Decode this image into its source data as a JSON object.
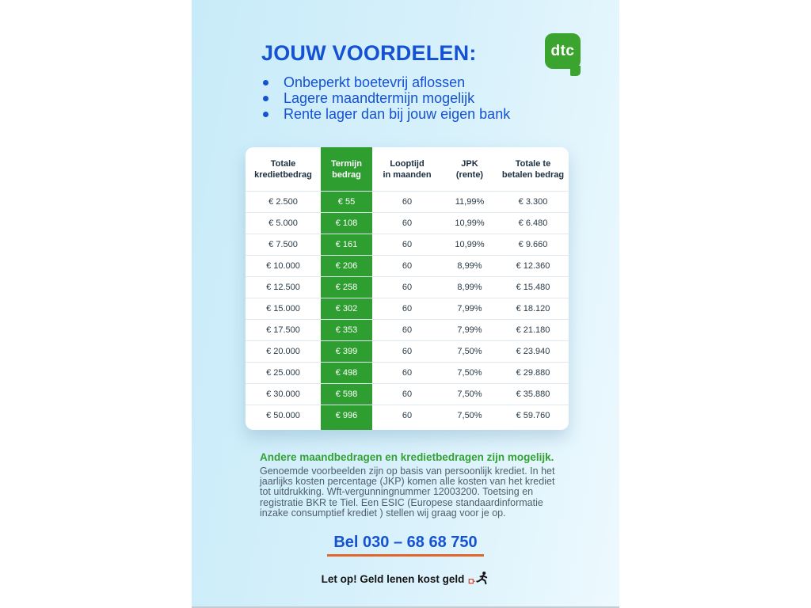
{
  "header": {
    "title": "JOUW VOORDELEN:",
    "logo_text": "dtc",
    "benefits": [
      "Onbeperkt boetevrij aflossen",
      "Lagere maandtermijn mogelijk",
      "Rente lager dan bij jouw eigen bank"
    ]
  },
  "table": {
    "columns": [
      {
        "label": "Totale kredietbedrag",
        "line1": "Totale",
        "line2": "kredietbedrag",
        "highlight": false
      },
      {
        "label": "Termijn bedrag",
        "line1": "Termijn",
        "line2": "bedrag",
        "highlight": true
      },
      {
        "label": "Looptijd in maanden",
        "line1": "Looptijd",
        "line2": "in maanden",
        "highlight": false
      },
      {
        "label": "JPK (rente)",
        "line1": "JPK",
        "line2": "(rente)",
        "highlight": false
      },
      {
        "label": "Totale te betalen bedrag",
        "line1": "Totale te",
        "line2": "betalen bedrag",
        "highlight": false
      }
    ],
    "rows": [
      [
        "€ 2.500",
        "€ 55",
        "60",
        "11,99%",
        "€ 3.300"
      ],
      [
        "€ 5.000",
        "€ 108",
        "60",
        "10,99%",
        "€ 6.480"
      ],
      [
        "€ 7.500",
        "€ 161",
        "60",
        "10,99%",
        "€ 9.660"
      ],
      [
        "€ 10.000",
        "€ 206",
        "60",
        "8,99%",
        "€ 12.360"
      ],
      [
        "€ 12.500",
        "€ 258",
        "60",
        "8,99%",
        "€ 15.480"
      ],
      [
        "€ 15.000",
        "€ 302",
        "60",
        "7,99%",
        "€ 18.120"
      ],
      [
        "€ 17.500",
        "€ 353",
        "60",
        "7,99%",
        "€ 21.180"
      ],
      [
        "€ 20.000",
        "€ 399",
        "60",
        "7,50%",
        "€ 23.940"
      ],
      [
        "€ 25.000",
        "€ 498",
        "60",
        "7,50%",
        "€ 29.880"
      ],
      [
        "€ 30.000",
        "€ 598",
        "60",
        "7,50%",
        "€ 35.880"
      ],
      [
        "€ 50.000",
        "€ 996",
        "60",
        "7,50%",
        "€ 59.760"
      ]
    ]
  },
  "footer": {
    "heading": "Andere maandbedragen en kredietbedragen zijn mogelijk.",
    "disclaimer": "Genoemde voorbeelden zijn op basis van persoonlijk krediet. In het jaarlijks kosten percentage (JKP) komen alle kosten van het krediet tot uitdrukking. Wft-vergunningnummer 12003200. Toetsing en registratie BKR te Tiel. Een ESIC (Europese standaardinformatie inzake consumptief krediet ) stellen wij graag voor je op.",
    "phone": "Bel 030 – 68 68 750",
    "warning": "Let op! Geld lenen kost geld"
  },
  "colors": {
    "accent_blue": "#1552d3",
    "brand_green": "#3aa42e",
    "table_green": "#2f9e30",
    "footer_green": "#33a233",
    "underline_orange": "#e2662c",
    "panel_blue": "#c8ebf9",
    "body_gray": "#4e5f6a",
    "warning_black": "#141414"
  }
}
